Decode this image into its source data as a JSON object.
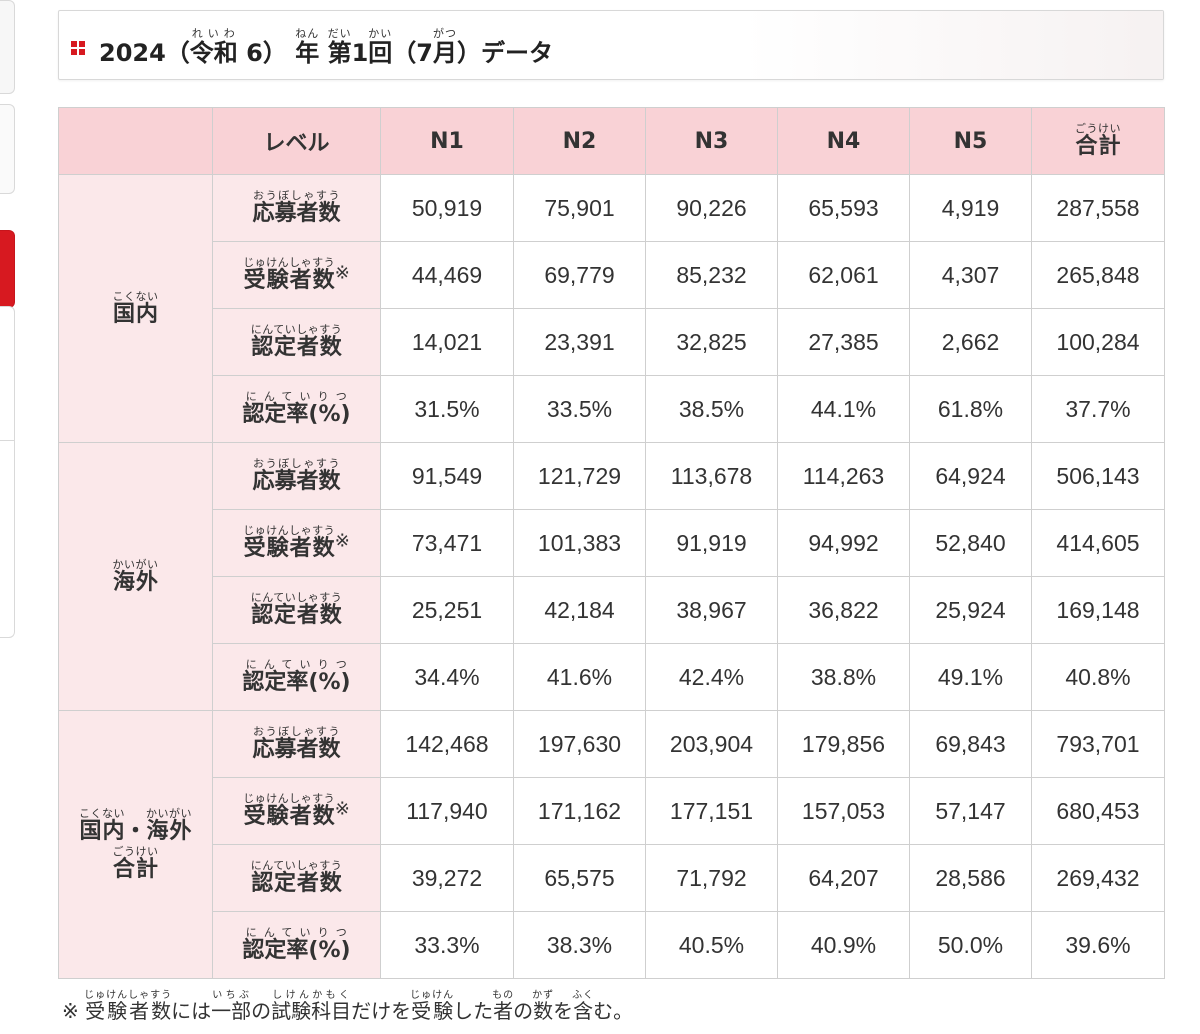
{
  "title": {
    "year": "2024",
    "era_open": "（",
    "era": "令和",
    "era_reading": "れいわ",
    "era_num": " 6）",
    "nen": "年",
    "nen_reading": "ねん",
    "dai": "第",
    "dai_reading": "だい",
    "round": "1",
    "kai": "回",
    "kai_reading": "かい",
    "month_open": "（7",
    "gatsu": "月",
    "gatsu_reading": "がつ",
    "month_close": "）データ"
  },
  "table": {
    "header_level": "レベル",
    "levels": [
      "N1",
      "N2",
      "N3",
      "N4",
      "N5"
    ],
    "total": "合計",
    "total_reading": "ごうけい",
    "groups": [
      {
        "label": "国内",
        "reading": "こくない",
        "rows": [
          {
            "metric": "応募者数",
            "reading": "おうぼしゃすう",
            "mark": "",
            "values": [
              "50,919",
              "75,901",
              "90,226",
              "65,593",
              "4,919",
              "287,558"
            ]
          },
          {
            "metric": "受験者数",
            "reading": "じゅけんしゃすう",
            "mark": "※",
            "values": [
              "44,469",
              "69,779",
              "85,232",
              "62,061",
              "4,307",
              "265,848"
            ]
          },
          {
            "metric": "認定者数",
            "reading": "にんていしゃすう",
            "mark": "",
            "values": [
              "14,021",
              "23,391",
              "32,825",
              "27,385",
              "2,662",
              "100,284"
            ]
          },
          {
            "metric": "認定率(%)",
            "reading": "にんていりつ",
            "mark": "",
            "values": [
              "31.5%",
              "33.5%",
              "38.5%",
              "44.1%",
              "61.8%",
              "37.7%"
            ]
          }
        ]
      },
      {
        "label": "海外",
        "reading": "かいがい",
        "rows": [
          {
            "metric": "応募者数",
            "reading": "おうぼしゃすう",
            "mark": "",
            "values": [
              "91,549",
              "121,729",
              "113,678",
              "114,263",
              "64,924",
              "506,143"
            ]
          },
          {
            "metric": "受験者数",
            "reading": "じゅけんしゃすう",
            "mark": "※",
            "values": [
              "73,471",
              "101,383",
              "91,919",
              "94,992",
              "52,840",
              "414,605"
            ]
          },
          {
            "metric": "認定者数",
            "reading": "にんていしゃすう",
            "mark": "",
            "values": [
              "25,251",
              "42,184",
              "38,967",
              "36,822",
              "25,924",
              "169,148"
            ]
          },
          {
            "metric": "認定率(%)",
            "reading": "にんていりつ",
            "mark": "",
            "values": [
              "34.4%",
              "41.6%",
              "42.4%",
              "38.8%",
              "49.1%",
              "40.8%"
            ]
          }
        ]
      },
      {
        "label_a": "国内",
        "label_a_reading": "こくない",
        "label_sep": "・",
        "label_b": "海外",
        "label_b_reading": "かいがい",
        "label_c": "合計",
        "label_c_reading": "ごうけい",
        "rows": [
          {
            "metric": "応募者数",
            "reading": "おうぼしゃすう",
            "mark": "",
            "values": [
              "142,468",
              "197,630",
              "203,904",
              "179,856",
              "69,843",
              "793,701"
            ]
          },
          {
            "metric": "受験者数",
            "reading": "じゅけんしゃすう",
            "mark": "※",
            "values": [
              "117,940",
              "171,162",
              "177,151",
              "157,053",
              "57,147",
              "680,453"
            ]
          },
          {
            "metric": "認定者数",
            "reading": "にんていしゃすう",
            "mark": "",
            "values": [
              "39,272",
              "65,575",
              "71,792",
              "64,207",
              "28,586",
              "269,432"
            ]
          },
          {
            "metric": "認定率(%)",
            "reading": "にんていりつ",
            "mark": "",
            "values": [
              "33.3%",
              "38.3%",
              "40.5%",
              "40.9%",
              "50.0%",
              "39.6%"
            ]
          }
        ]
      }
    ]
  },
  "note": {
    "prefix": "※ ",
    "w1": "受験者数",
    "w1_reading": "じゅけんしゃすう",
    "t1": "には",
    "w2": "一部",
    "w2_reading": "いちぶ",
    "t2": "の",
    "w3": "試験科目",
    "w3_reading": "しけんかもく",
    "t3": "だけを",
    "w4": "受験",
    "w4_reading": "じゅけん",
    "t4": "した",
    "w5": "者",
    "w5_reading": "もの",
    "t5": "の",
    "w6": "数",
    "w6_reading": "かず",
    "t6": "を",
    "w7": "含",
    "w7_reading": "ふく",
    "t7": "む。"
  },
  "colors": {
    "header_bg": "#f9d2d6",
    "label_bg": "#fbe8ea",
    "accent": "#d71920",
    "border": "#cfcfcf"
  },
  "icons": [
    "red-square-bullet-icon"
  ]
}
